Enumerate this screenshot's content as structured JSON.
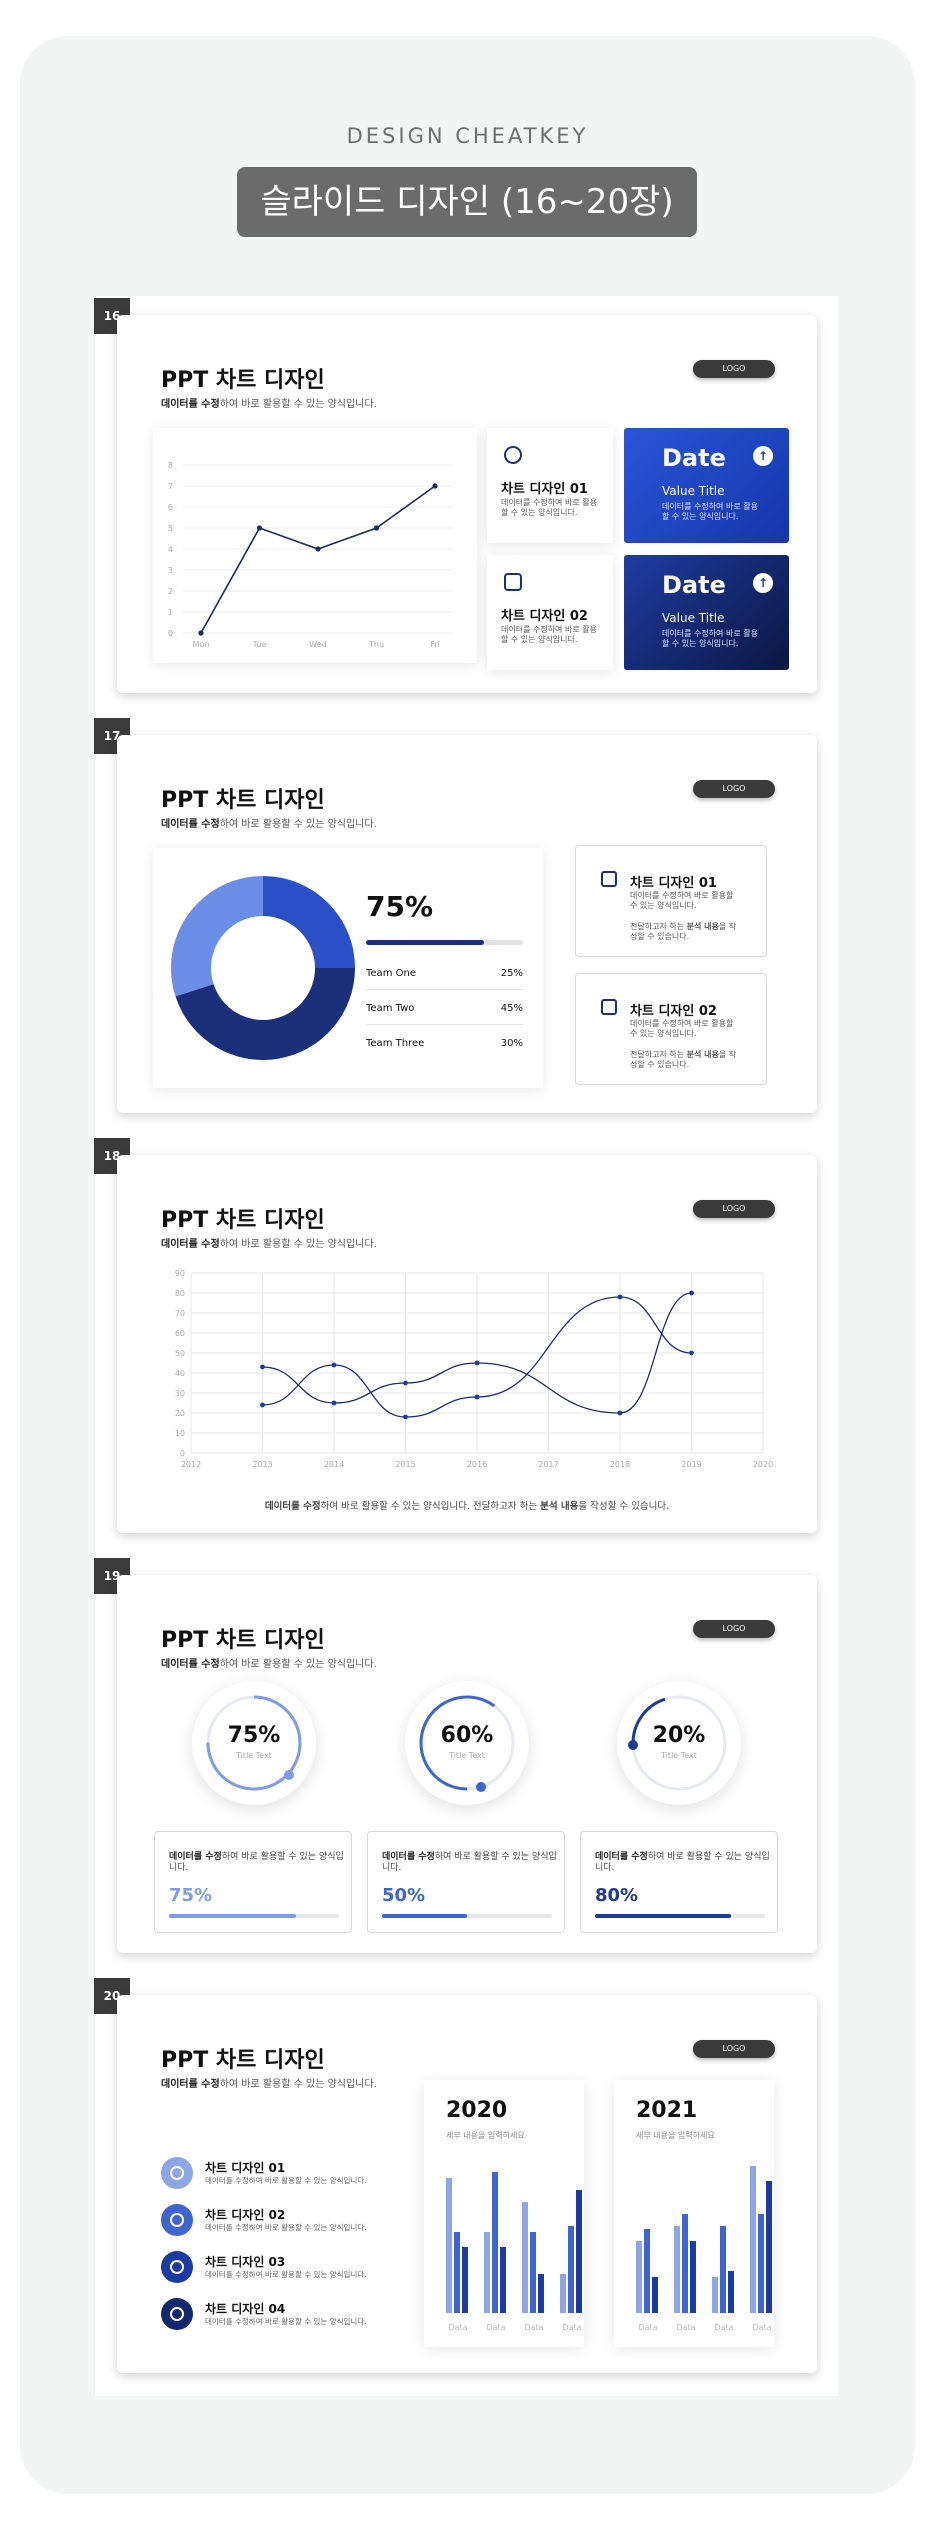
{
  "header": {
    "subtitle": "DESIGN CHEATKEY",
    "title": "슬라이드 디자인 (16~20장)"
  },
  "common": {
    "slide_title": "PPT 차트 디자인",
    "desc_bold": "데이터를 수정",
    "desc_rest": "하여 바로 활용할 수 있는 양식입니다.",
    "logo": "LOGO"
  },
  "slide16": {
    "number": "16",
    "card1_title": "차트 디자인 01",
    "card1_desc": "데이터를 수정하여 바로 활용할 수 있는 양식입니다.",
    "card2_title": "차트 디자인 02",
    "card2_desc": "데이터를 수정하여 바로 활용할 수 있는 양식입니다.",
    "blue1": {
      "title": "Date",
      "sub": "Value Title",
      "desc": "데이터를 수정하여 바로 활용할 수 있는 양식입니다."
    },
    "blue2": {
      "title": "Date",
      "sub": "Value Title",
      "desc": "데이터를 수정하여 바로 활용할 수 있는 양식입니다."
    }
  },
  "slide17": {
    "number": "17",
    "percent": "75%",
    "teams": [
      {
        "name": "Team One",
        "value": "25%"
      },
      {
        "name": "Team Two",
        "value": "45%"
      },
      {
        "name": "Team Three",
        "value": "30%"
      }
    ],
    "box1_title": "차트 디자인 01",
    "box1_desc": "데이터를 수정하여 바로 활용할 수 있는 양식입니다.",
    "box1_desc2a": "전달하고자 하는 ",
    "box1_desc2b": "분석 내용",
    "box1_desc2c": "을 작성할 수 있습니다.",
    "box2_title": "차트 디자인 02",
    "box2_desc": "데이터를 수정하여 바로 활용할 수 있는 양식입니다.",
    "box2_desc2a": "전달하고자 하는 ",
    "box2_desc2b": "분석 내용",
    "box2_desc2c": "을 작성할 수 있습니다."
  },
  "slide18": {
    "number": "18",
    "caption_a": "데이터를 수정",
    "caption_b": "하여 바로 활용할 수 있는 양식입니다. 전달하고자 하는 ",
    "caption_c": "분석 내용",
    "caption_d": "을 작성할 수 있습니다."
  },
  "slide19": {
    "number": "19",
    "rings": [
      {
        "pct": "75%",
        "label": "Title Text"
      },
      {
        "pct": "60%",
        "label": "Title Text"
      },
      {
        "pct": "20%",
        "label": "Title Text"
      }
    ],
    "stats": [
      {
        "desc_bold": "데이터를 수정",
        "desc_rest": "하여 바로 활용할 수 있는 양식입니다.",
        "value": "75%",
        "color": "#7f9be4",
        "fill": 0.75
      },
      {
        "desc_bold": "데이터를 수정",
        "desc_rest": "하여 바로 활용할 수 있는 양식입니다.",
        "value": "50%",
        "color": "#3d64cf",
        "fill": 0.5
      },
      {
        "desc_bold": "데이터를 수정",
        "desc_rest": "하여 바로 활용할 수 있는 양식입니다.",
        "value": "80%",
        "color": "#1c3a96",
        "fill": 0.8
      }
    ]
  },
  "slide20": {
    "number": "20",
    "items": [
      {
        "title": "차트 디자인 01",
        "desc": "데이터를 수정하여 바로 활용할 수 있는 양식입니다."
      },
      {
        "title": "차트 디자인 02",
        "desc": "데이터를 수정하여 바로 활용할 수 있는 양식입니다."
      },
      {
        "title": "차트 디자인 03",
        "desc": "데이터를 수정하여 바로 활용할 수 있는 양식입니다."
      },
      {
        "title": "차트 디자인 04",
        "desc": "데이터를 수정하여 바로 활용할 수 있는 양식입니다."
      }
    ],
    "cards": [
      {
        "year": "2020",
        "sub": "세부 내용을 입력하세요",
        "xlabels": [
          "Data",
          "Data",
          "Data",
          "Data"
        ]
      },
      {
        "year": "2021",
        "sub": "세부 내용을 입력하세요",
        "xlabels": [
          "Data",
          "Data",
          "Data",
          "Data"
        ]
      }
    ]
  },
  "colors": {
    "navy": "#1c2f7a",
    "blue": "#2a4fc7",
    "light_blue": "#7f9be4"
  },
  "chart_data": [
    {
      "type": "line",
      "categories": [
        "Mon",
        "Tue",
        "Wed",
        "Thu",
        "Fri"
      ],
      "values": [
        0,
        5,
        4,
        5,
        7
      ],
      "ylim": [
        0,
        8
      ],
      "yticks": [
        "0",
        "1",
        "2",
        "3",
        "4",
        "5",
        "6",
        "7",
        "8"
      ],
      "grid": true
    },
    {
      "type": "pie",
      "labels": [
        "Team One",
        "Team Two",
        "Team Three"
      ],
      "values": [
        25,
        45,
        30
      ],
      "colors": [
        "#2a4fc7",
        "#1c2f7a",
        "#6a8de6"
      ]
    },
    {
      "type": "line",
      "x": [
        "2012",
        "2013",
        "2014",
        "2015",
        "2016",
        "2017",
        "2018",
        "2019",
        "2020"
      ],
      "ylim": [
        0,
        90
      ],
      "yticks": [
        "0",
        "10",
        "20",
        "30",
        "40",
        "50",
        "60",
        "70",
        "80",
        "90"
      ],
      "series": [
        {
          "points": [
            [
              2013,
              43
            ],
            [
              2014,
              25
            ],
            [
              2015,
              35
            ],
            [
              2016,
              45
            ],
            [
              2018,
              20
            ],
            [
              2019,
              80
            ]
          ]
        },
        {
          "points": [
            [
              2013,
              24
            ],
            [
              2014,
              44
            ],
            [
              2015,
              18
            ],
            [
              2016,
              28
            ],
            [
              2018,
              78
            ],
            [
              2019,
              50
            ]
          ]
        }
      ],
      "grid": true
    },
    {
      "type": "bar",
      "title": "2020",
      "categories": [
        "Data",
        "Data",
        "Data",
        "Data"
      ],
      "series": [
        {
          "values": [
            90,
            54,
            74,
            26
          ]
        },
        {
          "values": [
            54,
            94,
            54,
            58
          ]
        },
        {
          "values": [
            44,
            44,
            26,
            82
          ]
        }
      ],
      "colors": [
        "#8fa6e6",
        "#3d64cf",
        "#1c3aa3"
      ]
    },
    {
      "type": "bar",
      "title": "2021",
      "categories": [
        "Data",
        "Data",
        "Data",
        "Data"
      ],
      "series": [
        {
          "values": [
            48,
            58,
            24,
            98
          ]
        },
        {
          "values": [
            56,
            66,
            58,
            66
          ]
        },
        {
          "values": [
            24,
            48,
            28,
            88
          ]
        }
      ],
      "colors": [
        "#8fa6e6",
        "#3d64cf",
        "#1c3aa3"
      ]
    }
  ]
}
